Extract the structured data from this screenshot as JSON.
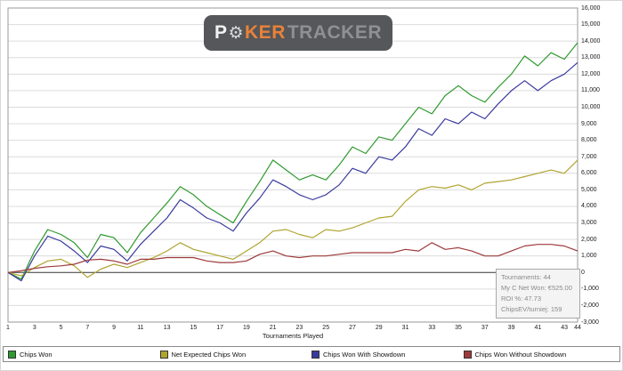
{
  "watermark": {
    "p": "P",
    "ker": "KER",
    "tracker": "TRACKER"
  },
  "tooltip": {
    "lines": [
      "Tournaments: 44",
      "My C Net Won: €525.00",
      "ROI %: 47.73",
      "ChipsEV/turniej: 159"
    ]
  },
  "legend": {
    "items": [
      {
        "label": "Chips Won",
        "color": "#2f9a2f"
      },
      {
        "label": "Net Expected Chips Won",
        "color": "#b0a42f"
      },
      {
        "label": "Chips Won With Showdown",
        "color": "#3a3a9e"
      },
      {
        "label": "Chips Won Without Showdown",
        "color": "#9e3a3a"
      }
    ]
  },
  "chart_data": {
    "type": "line",
    "title": "",
    "xlabel": "Tournaments Played",
    "ylabel": "",
    "xlim": [
      1,
      44
    ],
    "ylim": [
      -3000,
      16000
    ],
    "ytick_step": 1000,
    "xticks": [
      1,
      3,
      5,
      7,
      9,
      11,
      13,
      15,
      17,
      19,
      21,
      23,
      25,
      27,
      29,
      31,
      33,
      35,
      37,
      39,
      41,
      43,
      44
    ],
    "grid": "horizontal",
    "legend_position": "bottom",
    "x": [
      1,
      2,
      3,
      4,
      5,
      6,
      7,
      8,
      9,
      10,
      11,
      12,
      13,
      14,
      15,
      16,
      17,
      18,
      19,
      20,
      21,
      22,
      23,
      24,
      25,
      26,
      27,
      28,
      29,
      30,
      31,
      32,
      33,
      34,
      35,
      36,
      37,
      38,
      39,
      40,
      41,
      42,
      43,
      44
    ],
    "series": [
      {
        "name": "Chips Won",
        "color": "#2f9a2f",
        "values": [
          0,
          -400,
          1300,
          2600,
          2300,
          1800,
          900,
          2300,
          2100,
          1200,
          2400,
          3300,
          4200,
          5200,
          4700,
          4000,
          3500,
          3000,
          4300,
          5500,
          6800,
          6200,
          5600,
          5900,
          5600,
          6500,
          7600,
          7200,
          8200,
          8000,
          9000,
          10000,
          9600,
          10700,
          11300,
          10700,
          10300,
          11200,
          12000,
          13100,
          12500,
          13300,
          12900,
          13900
        ]
      },
      {
        "name": "Net Expected Chips Won",
        "color": "#b0a42f",
        "values": [
          0,
          -200,
          300,
          700,
          800,
          400,
          -300,
          200,
          500,
          300,
          600,
          900,
          1300,
          1800,
          1400,
          1200,
          1000,
          800,
          1300,
          1800,
          2500,
          2600,
          2300,
          2100,
          2600,
          2500,
          2700,
          3000,
          3300,
          3400,
          4300,
          5000,
          5200,
          5100,
          5300,
          5000,
          5400,
          5500,
          5600,
          5800,
          6000,
          6200,
          6000,
          6800
        ]
      },
      {
        "name": "Chips Won With Showdown",
        "color": "#3a3a9e",
        "values": [
          0,
          -500,
          1000,
          2200,
          1900,
          1300,
          600,
          1600,
          1400,
          700,
          1700,
          2500,
          3300,
          4400,
          3900,
          3300,
          3000,
          2500,
          3600,
          4500,
          5600,
          5200,
          4700,
          4400,
          4700,
          5300,
          6300,
          6000,
          7000,
          6800,
          7600,
          8700,
          8300,
          9300,
          9000,
          9700,
          9300,
          10200,
          11000,
          11600,
          11000,
          11600,
          12000,
          12700
        ]
      },
      {
        "name": "Chips Won Without Showdown",
        "color": "#9e3a3a",
        "values": [
          0,
          100,
          250,
          350,
          400,
          500,
          750,
          800,
          700,
          500,
          800,
          800,
          900,
          900,
          900,
          700,
          600,
          600,
          700,
          1100,
          1300,
          1000,
          900,
          1000,
          1000,
          1100,
          1200,
          1200,
          1200,
          1200,
          1400,
          1300,
          1800,
          1400,
          1500,
          1300,
          1000,
          1000,
          1300,
          1600,
          1700,
          1700,
          1600,
          1300
        ]
      }
    ]
  }
}
